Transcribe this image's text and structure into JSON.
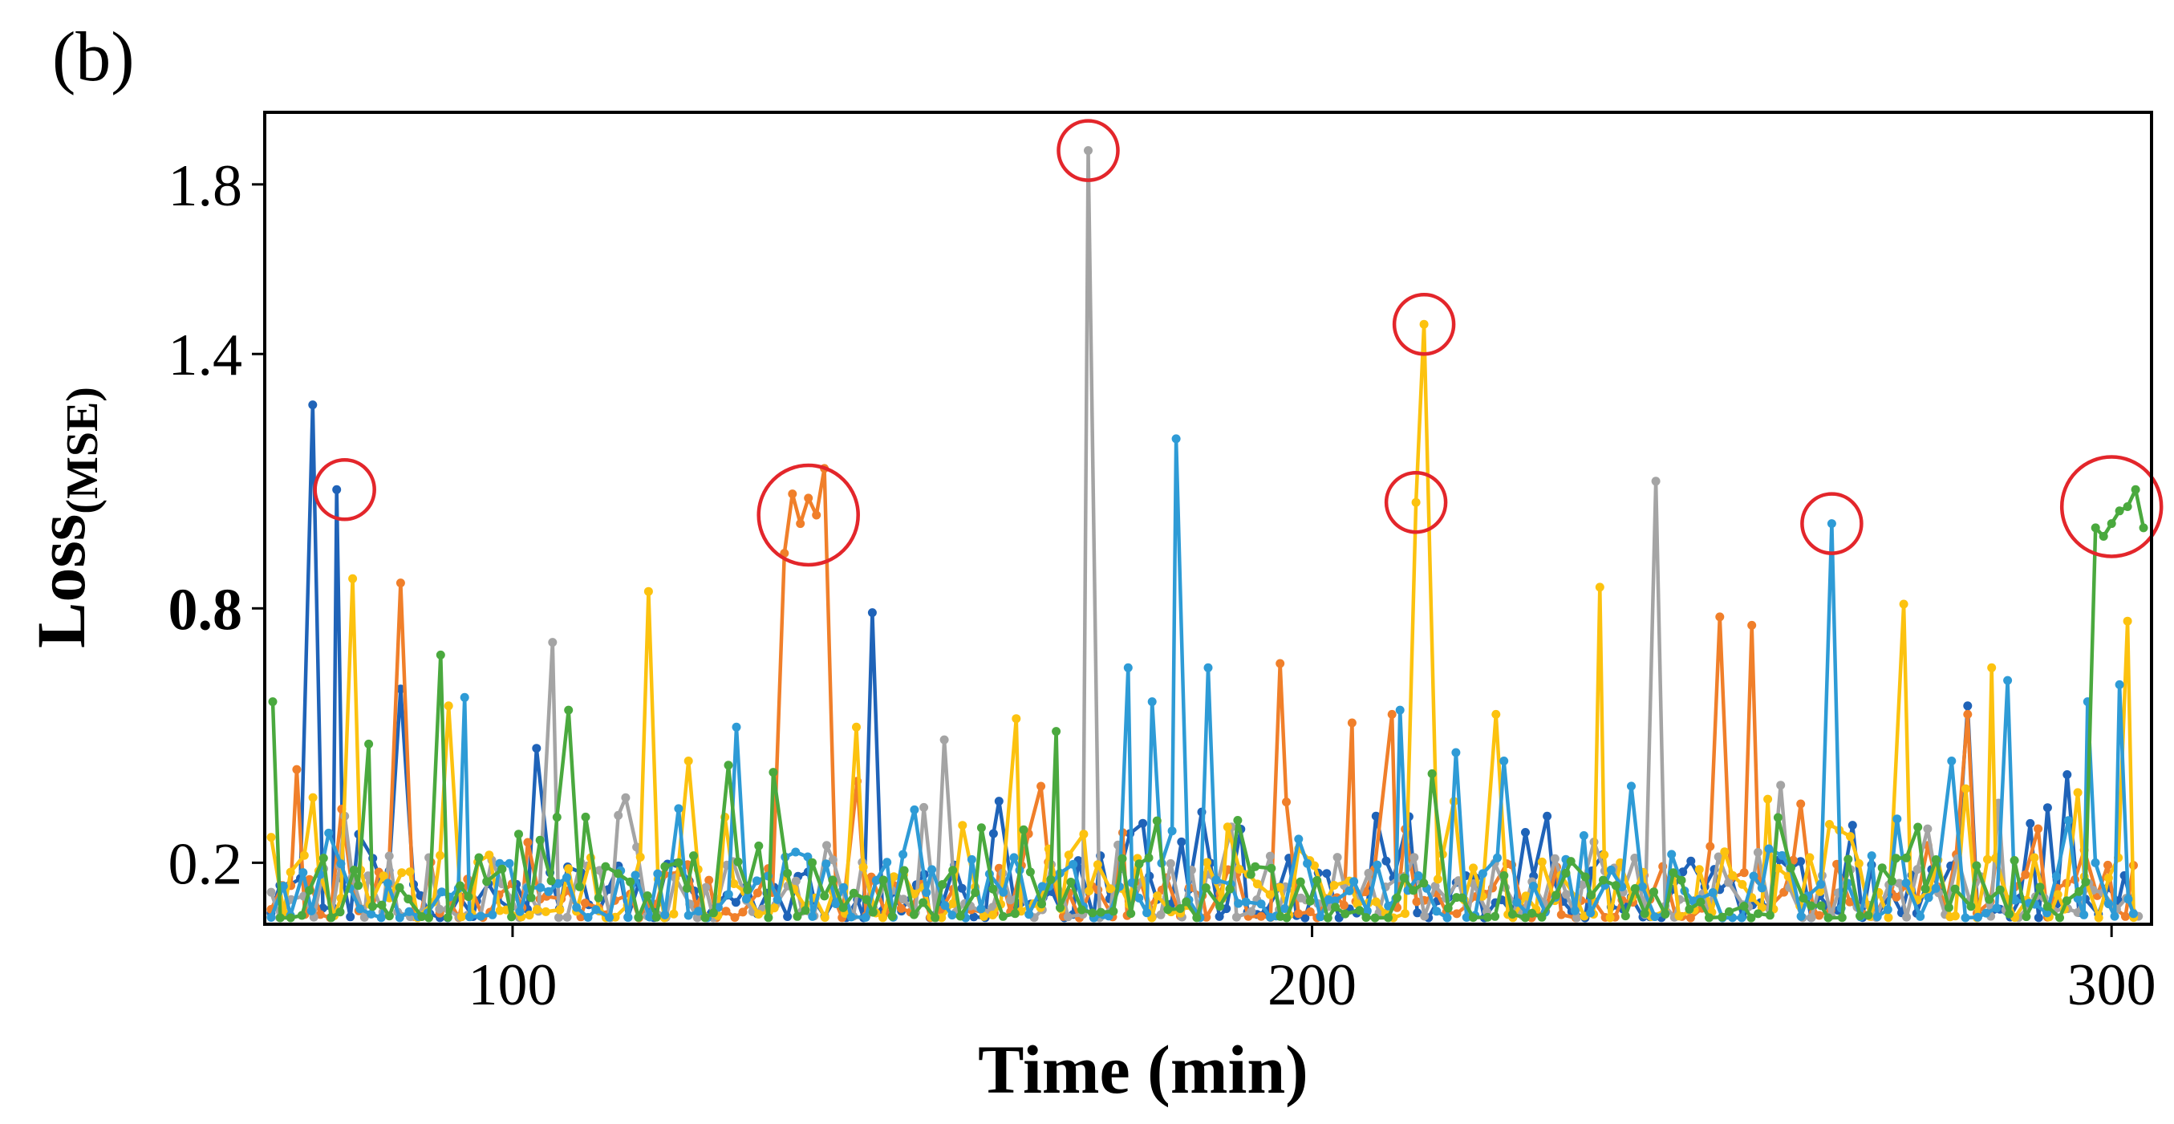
{
  "panel_label": "(b)",
  "chart_data": {
    "type": "line",
    "title": "",
    "xlabel": "Time (min)",
    "ylabel_main": "Loss",
    "ylabel_sub": "(MSE)",
    "xlim": [
      69,
      305
    ],
    "ylim": [
      0.055,
      1.97
    ],
    "x_ticks": [
      {
        "value": 100,
        "label": "100"
      },
      {
        "value": 200,
        "label": "200"
      },
      {
        "value": 300,
        "label": "300"
      }
    ],
    "y_ticks": [
      {
        "value": 0.2,
        "label": "0.2",
        "bold": false
      },
      {
        "value": 0.8,
        "label": "0.8",
        "bold": true
      },
      {
        "value": 1.4,
        "label": "1.4",
        "bold": false
      },
      {
        "value": 1.8,
        "label": "1.8",
        "bold": false
      }
    ],
    "baseline": 0.07,
    "noise_points": 190,
    "series": [
      {
        "name": "series-dark-blue",
        "color": "#1f63b8",
        "seed": 11,
        "peaks": [
          [
            75,
            1.28
          ],
          [
            78,
            1.08
          ],
          [
            86,
            0.61
          ],
          [
            103,
            0.47
          ],
          [
            145,
            0.79
          ],
          [
            208,
            0.31
          ],
          [
            282,
            0.57
          ],
          [
            292,
            0.33
          ]
        ]
      },
      {
        "name": "series-orange",
        "color": "#f07f2a",
        "seed": 23,
        "peaks": [
          [
            73,
            0.42
          ],
          [
            86,
            0.86
          ],
          [
            134,
            0.93
          ],
          [
            135,
            1.07
          ],
          [
            136,
            1.0
          ],
          [
            137,
            1.06
          ],
          [
            138,
            1.02
          ],
          [
            139,
            1.13
          ],
          [
            196,
            0.67
          ],
          [
            205,
            0.53
          ],
          [
            210,
            0.55
          ],
          [
            251,
            0.78
          ],
          [
            255,
            0.76
          ],
          [
            282,
            0.55
          ]
        ]
      },
      {
        "name": "series-gray",
        "color": "#a4a4a4",
        "seed": 37,
        "peaks": [
          [
            79,
            0.31
          ],
          [
            105,
            0.72
          ],
          [
            154,
            0.49
          ],
          [
            172,
            1.88
          ],
          [
            243,
            1.1
          ],
          [
            277,
            0.28
          ]
        ]
      },
      {
        "name": "series-yellow",
        "color": "#fcc20f",
        "seed": 41,
        "peaks": [
          [
            80,
            0.87
          ],
          [
            92,
            0.57
          ],
          [
            117,
            0.84
          ],
          [
            122,
            0.44
          ],
          [
            143,
            0.52
          ],
          [
            163,
            0.54
          ],
          [
            213,
            1.05
          ],
          [
            214,
            1.47
          ],
          [
            223,
            0.55
          ],
          [
            236,
            0.85
          ],
          [
            257,
            0.35
          ],
          [
            274,
            0.81
          ],
          [
            285,
            0.66
          ],
          [
            302,
            0.77
          ]
        ]
      },
      {
        "name": "series-light-blue",
        "color": "#2e9bd6",
        "seed": 53,
        "peaks": [
          [
            77,
            0.27
          ],
          [
            94,
            0.59
          ],
          [
            128,
            0.52
          ],
          [
            177,
            0.66
          ],
          [
            180,
            0.58
          ],
          [
            183,
            1.2
          ],
          [
            187,
            0.66
          ],
          [
            211,
            0.56
          ],
          [
            218,
            0.46
          ],
          [
            224,
            0.44
          ],
          [
            265,
            1.0
          ],
          [
            280,
            0.44
          ],
          [
            287,
            0.63
          ],
          [
            297,
            0.58
          ],
          [
            301,
            0.62
          ]
        ]
      },
      {
        "name": "series-green",
        "color": "#4aa93e",
        "seed": 67,
        "peaks": [
          [
            70,
            0.58
          ],
          [
            82,
            0.48
          ],
          [
            91,
            0.69
          ],
          [
            107,
            0.56
          ],
          [
            127,
            0.43
          ],
          [
            168,
            0.51
          ],
          [
            215,
            0.41
          ],
          [
            298,
            0.99
          ],
          [
            299,
            0.97
          ],
          [
            300,
            1.0
          ],
          [
            301,
            1.03
          ],
          [
            302,
            1.04
          ],
          [
            303,
            1.08
          ],
          [
            304,
            0.99
          ]
        ]
      }
    ],
    "highlights": [
      {
        "x": 79,
        "y": 1.08,
        "r": "small"
      },
      {
        "x": 137,
        "y": 1.02,
        "r": "large"
      },
      {
        "x": 172,
        "y": 1.88,
        "r": "small"
      },
      {
        "x": 214,
        "y": 1.47,
        "r": "small"
      },
      {
        "x": 213,
        "y": 1.05,
        "r": "small"
      },
      {
        "x": 265,
        "y": 1.0,
        "r": "small"
      },
      {
        "x": 300,
        "y": 1.04,
        "r": "large"
      }
    ]
  }
}
